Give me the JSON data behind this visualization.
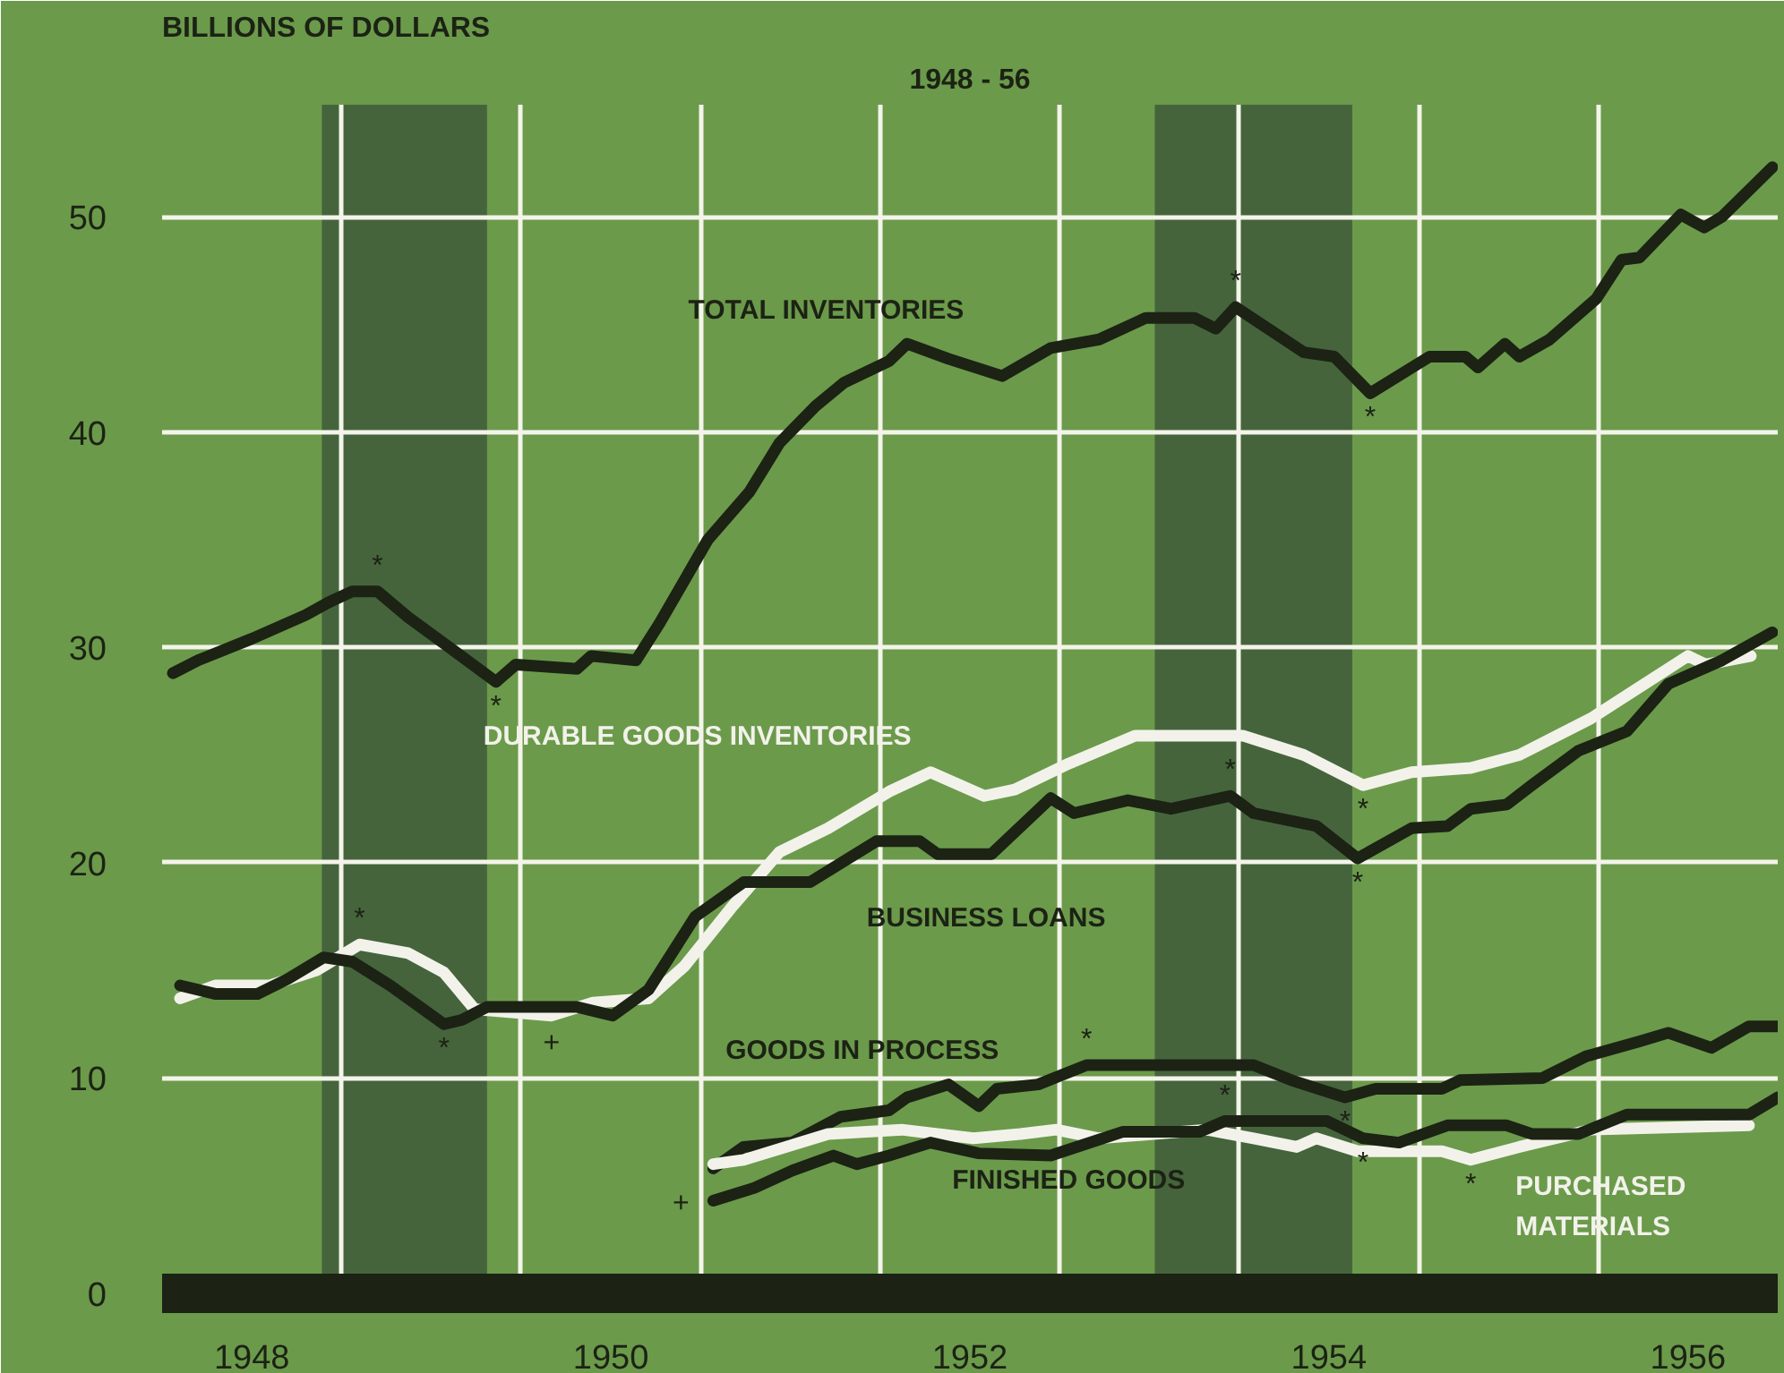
{
  "chart_data": {
    "type": "line",
    "title": "1948 - 56",
    "ylabel": "BILLIONS OF DOLLARS",
    "xlim": [
      1948,
      1957
    ],
    "ylim": [
      0,
      55.2
    ],
    "xticks": [
      {
        "value": 1948.5,
        "label": "1948"
      },
      {
        "value": 1950.5,
        "label": "1950"
      },
      {
        "value": 1952.5,
        "label": "1952"
      },
      {
        "value": 1954.5,
        "label": "1954"
      },
      {
        "value": 1956.5,
        "label": "1956"
      },
      {
        "value": 1949,
        "label": null
      },
      {
        "value": 1950,
        "label": null
      },
      {
        "value": 1951,
        "label": null
      },
      {
        "value": 1952,
        "label": null
      },
      {
        "value": 1953,
        "label": null
      },
      {
        "value": 1954,
        "label": null
      },
      {
        "value": 1955,
        "label": null
      },
      {
        "value": 1956,
        "label": null
      }
    ],
    "yticks": [
      0,
      10,
      20,
      30,
      40,
      50
    ],
    "grid": true,
    "line_style": "solid",
    "marker": "none",
    "bands": [
      {
        "axis": "x",
        "from": 1948.89,
        "to": 1949.81,
        "color": "#3e5a3a"
      },
      {
        "axis": "x",
        "from": 1953.53,
        "to": 1954.63,
        "color": "#3e5a3a"
      }
    ],
    "series": [
      {
        "name": "TOTAL INVENTORIES",
        "color": "#1c2214",
        "x": [
          1948.06,
          1948.2,
          1948.5,
          1948.8,
          1948.93,
          1949.06,
          1949.2,
          1949.37,
          1949.6,
          1949.86,
          1949.97,
          1950.31,
          1950.39,
          1950.64,
          1950.77,
          1951.04,
          1951.27,
          1951.44,
          1951.64,
          1951.8,
          1952.05,
          1952.15,
          1952.38,
          1952.68,
          1952.95,
          1953.22,
          1953.48,
          1953.75,
          1953.87,
          1953.98,
          1954.36,
          1954.53,
          1954.73,
          1955.06,
          1955.26,
          1955.33,
          1955.48,
          1955.56,
          1955.73,
          1955.99,
          1956.13,
          1956.23,
          1956.46,
          1956.59,
          1956.69,
          1956.97
        ],
        "values": [
          28.8,
          29.4,
          30.4,
          31.5,
          32.1,
          32.6,
          32.6,
          31.4,
          30.0,
          28.4,
          29.2,
          29.0,
          29.6,
          29.4,
          31.1,
          35.0,
          37.2,
          39.5,
          41.2,
          42.3,
          43.3,
          44.1,
          43.4,
          42.6,
          43.9,
          44.3,
          45.3,
          45.3,
          44.8,
          45.8,
          43.7,
          43.5,
          41.8,
          43.5,
          43.5,
          43.0,
          44.1,
          43.5,
          44.3,
          46.2,
          48.0,
          48.1,
          50.1,
          49.5,
          50.0,
          52.3
        ]
      },
      {
        "name": "DURABLE GOODS INVENTORIES",
        "color": "#f2f2ea",
        "x": [
          1948.1,
          1948.3,
          1948.6,
          1948.86,
          1949.1,
          1949.37,
          1949.57,
          1949.74,
          1950.17,
          1950.4,
          1950.71,
          1950.91,
          1951.17,
          1951.44,
          1951.71,
          1952.05,
          1952.28,
          1952.58,
          1952.75,
          1953.05,
          1953.42,
          1954.02,
          1954.36,
          1954.69,
          1954.96,
          1955.29,
          1955.56,
          1955.96,
          1956.5,
          1956.6,
          1956.85
        ],
        "values": [
          13.7,
          14.3,
          14.3,
          15.0,
          16.2,
          15.8,
          14.9,
          13.2,
          12.9,
          13.5,
          13.7,
          15.2,
          17.9,
          20.5,
          21.6,
          23.3,
          24.2,
          23.1,
          23.4,
          24.6,
          25.9,
          25.9,
          25.0,
          23.6,
          24.2,
          24.4,
          25.0,
          26.7,
          29.6,
          29.2,
          29.6
        ]
      },
      {
        "name": "BUSINESS LOANS",
        "color": "#1c2214",
        "x": [
          1948.1,
          1948.3,
          1948.53,
          1948.7,
          1948.9,
          1949.06,
          1949.27,
          1949.57,
          1949.67,
          1949.81,
          1950.31,
          1950.51,
          1950.71,
          1950.97,
          1951.24,
          1951.61,
          1951.98,
          1952.22,
          1952.32,
          1952.62,
          1952.95,
          1953.08,
          1953.38,
          1953.62,
          1953.95,
          1954.08,
          1954.43,
          1954.66,
          1954.96,
          1955.16,
          1955.29,
          1955.49,
          1955.63,
          1955.89,
          1956.16,
          1956.39,
          1956.69,
          1956.97
        ],
        "values": [
          14.3,
          13.9,
          13.9,
          14.6,
          15.6,
          15.4,
          14.3,
          12.5,
          12.7,
          13.3,
          13.3,
          12.9,
          14.1,
          17.5,
          19.1,
          19.1,
          21.0,
          21.0,
          20.4,
          20.4,
          23.0,
          22.3,
          22.9,
          22.5,
          23.1,
          22.3,
          21.7,
          20.2,
          21.6,
          21.7,
          22.5,
          22.7,
          23.6,
          25.2,
          26.1,
          28.3,
          29.4,
          30.7
        ]
      },
      {
        "name": "GOODS IN PROCESS",
        "color": "#1c2214",
        "x": [
          1951.07,
          1951.24,
          1951.51,
          1951.78,
          1952.05,
          1952.15,
          1952.38,
          1952.55,
          1952.65,
          1952.88,
          1953.15,
          1954.08,
          1954.29,
          1954.59,
          1954.76,
          1955.13,
          1955.23,
          1955.69,
          1955.93,
          1956.23,
          1956.39,
          1956.63,
          1956.84,
          1957.0
        ],
        "values": [
          5.8,
          6.8,
          7.0,
          8.2,
          8.5,
          9.1,
          9.7,
          8.7,
          9.5,
          9.7,
          10.6,
          10.6,
          9.9,
          9.1,
          9.5,
          9.5,
          9.9,
          10.0,
          11.0,
          11.7,
          12.1,
          11.4,
          12.4,
          12.4
        ]
      },
      {
        "name": "PURCHASED\nMATERIALS",
        "color": "#f2f2ea",
        "x": [
          1951.07,
          1951.24,
          1951.71,
          1952.12,
          1952.52,
          1952.78,
          1952.98,
          1953.22,
          1953.82,
          1954.08,
          1954.32,
          1954.43,
          1954.66,
          1955.13,
          1955.29,
          1955.56,
          1955.96,
          1956.84
        ],
        "values": [
          6.0,
          6.2,
          7.4,
          7.6,
          7.2,
          7.4,
          7.6,
          7.2,
          7.6,
          7.2,
          6.8,
          7.2,
          6.6,
          6.6,
          6.2,
          6.8,
          7.6,
          7.8
        ]
      },
      {
        "name": "FINISHED GOODS",
        "color": "#1c2214",
        "x": [
          1951.07,
          1951.3,
          1951.51,
          1951.74,
          1951.87,
          1952.05,
          1952.28,
          1952.55,
          1952.95,
          1953.35,
          1953.78,
          1953.92,
          1954.49,
          1954.69,
          1954.89,
          1955.16,
          1955.49,
          1955.63,
          1955.89,
          1956.16,
          1956.84,
          1957.0
        ],
        "values": [
          4.3,
          4.9,
          5.7,
          6.4,
          6.0,
          6.4,
          7.0,
          6.5,
          6.4,
          7.5,
          7.5,
          8.0,
          8.0,
          7.2,
          7.0,
          7.8,
          7.8,
          7.4,
          7.4,
          8.3,
          8.3,
          9.1
        ]
      }
    ],
    "annotations": [
      {
        "text": "*",
        "x": 1949.2,
        "y": 32.6
      },
      {
        "text": "*",
        "x": 1949.86,
        "y": 28.4
      },
      {
        "text": "*",
        "x": 1953.98,
        "y": 45.8
      },
      {
        "text": "*",
        "x": 1954.73,
        "y": 41.8
      },
      {
        "text": "*",
        "x": 1949.1,
        "y": 16.2
      },
      {
        "text": "*",
        "x": 1949.57,
        "y": 12.5
      },
      {
        "text": "+",
        "x": 1950.17,
        "y": 12.9
      },
      {
        "text": "*",
        "x": 1954.69,
        "y": 23.6
      },
      {
        "text": "*",
        "x": 1953.95,
        "y": 23.1
      },
      {
        "text": "*",
        "x": 1954.66,
        "y": 20.2
      },
      {
        "text": "*",
        "x": 1953.15,
        "y": 10.6
      },
      {
        "text": "*",
        "x": 1954.59,
        "y": 9.1
      },
      {
        "text": "*",
        "x": 1953.92,
        "y": 8.0
      },
      {
        "text": "*",
        "x": 1954.69,
        "y": 7.2
      },
      {
        "text": "*",
        "x": 1955.29,
        "y": 6.2
      },
      {
        "text": "+",
        "x": 1951.07,
        "y": 4.3
      }
    ]
  }
}
